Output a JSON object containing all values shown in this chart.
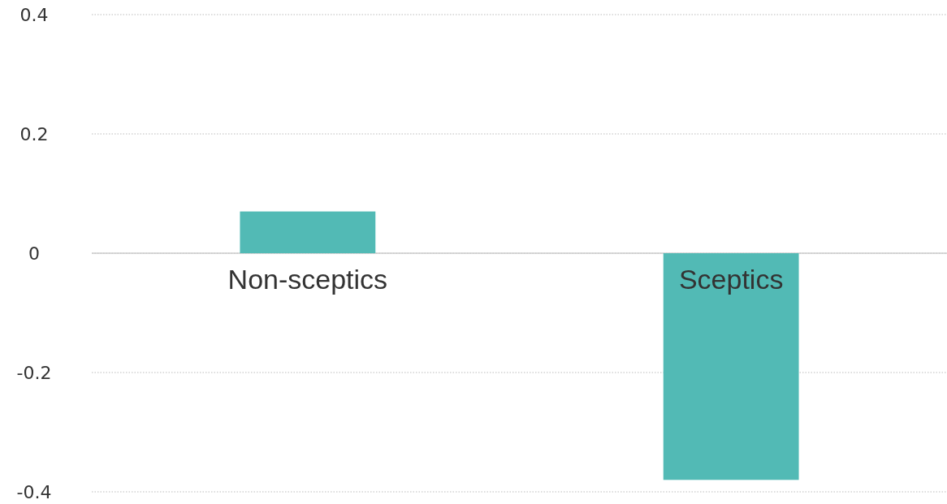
{
  "chart_data": {
    "type": "bar",
    "categories": [
      "Non-sceptics",
      "Sceptics"
    ],
    "values": [
      0.07,
      -0.38
    ],
    "color": "#52bab5",
    "ylim": [
      -0.4,
      0.4
    ],
    "yticks": [
      -0.4,
      -0.2,
      0,
      0.2,
      0.4
    ],
    "grid": "y"
  }
}
